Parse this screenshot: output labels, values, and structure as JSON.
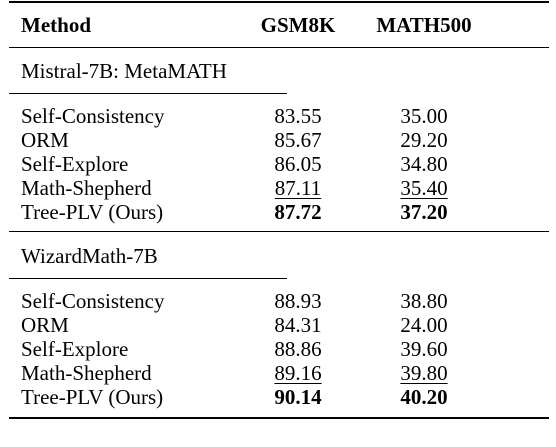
{
  "table": {
    "headers": {
      "method": "Method",
      "gsm8k": "GSM8K",
      "math500": "MATH500"
    },
    "groups": [
      {
        "title": "Mistral-7B: MetaMATH",
        "rows": [
          {
            "method": "Self-Consistency",
            "gsm8k": "83.55",
            "math500": "35.00",
            "style": "normal"
          },
          {
            "method": "ORM",
            "gsm8k": "85.67",
            "math500": "29.20",
            "style": "normal"
          },
          {
            "method": "Self-Explore",
            "gsm8k": "86.05",
            "math500": "34.80",
            "style": "normal"
          },
          {
            "method": "Math-Shepherd",
            "gsm8k": "87.11",
            "math500": "35.40",
            "style": "underline"
          },
          {
            "method": "Tree-PLV (Ours)",
            "gsm8k": "87.72",
            "math500": "37.20",
            "style": "bold"
          }
        ]
      },
      {
        "title": "WizardMath-7B",
        "rows": [
          {
            "method": "Self-Consistency",
            "gsm8k": "88.93",
            "math500": "38.80",
            "style": "normal"
          },
          {
            "method": "ORM",
            "gsm8k": "84.31",
            "math500": "24.00",
            "style": "normal"
          },
          {
            "method": "Self-Explore",
            "gsm8k": "88.86",
            "math500": "39.60",
            "style": "normal"
          },
          {
            "method": "Math-Shepherd",
            "gsm8k": "89.16",
            "math500": "39.80",
            "style": "underline"
          },
          {
            "method": "Tree-PLV (Ours)",
            "gsm8k": "90.14",
            "math500": "40.20",
            "style": "bold"
          }
        ]
      }
    ]
  }
}
